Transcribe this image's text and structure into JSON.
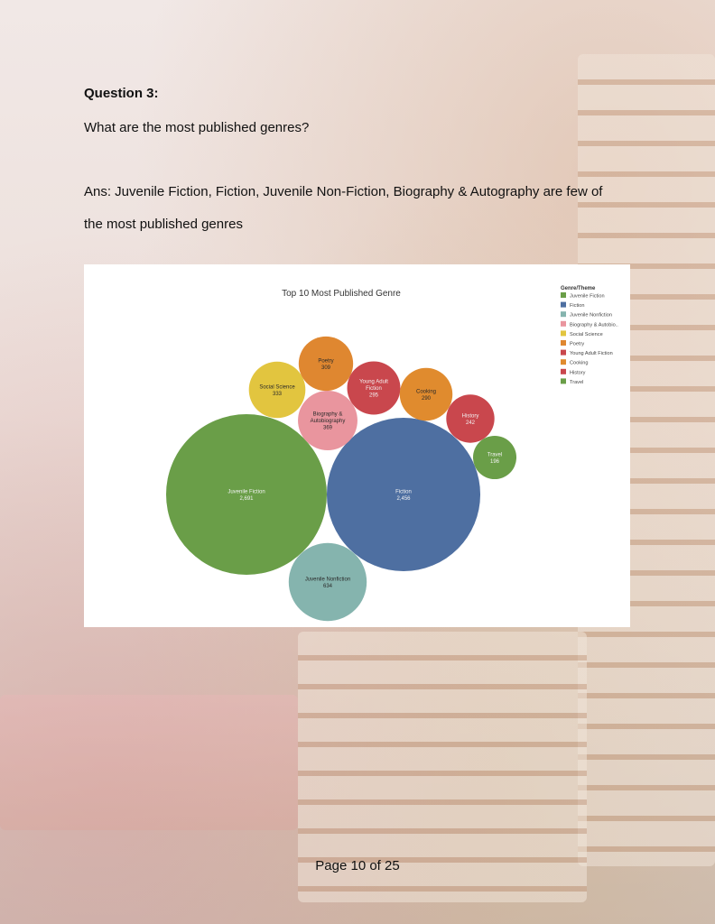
{
  "question": {
    "title": "Question 3:",
    "text": "What are the most published genres?"
  },
  "answer": {
    "line1": "Ans: Juvenile Fiction, Fiction, Juvenile Non-Fiction, Biography & Autography are few of",
    "line2": "the most published genres"
  },
  "chart_data": {
    "type": "packed-bubble",
    "title": "Top 10 Most Published Genre",
    "legend_title": "Genre/Theme",
    "legend_position": "top-right",
    "legend_entries": [
      "Juvenile Fiction",
      "Fiction",
      "Juvenile Nonfiction",
      "Biography & Autobio..",
      "Social Science",
      "Poetry",
      "Young Adult Fiction",
      "Cooking",
      "History",
      "Travel"
    ],
    "series": [
      {
        "name": "Juvenile Fiction",
        "label_lines": [
          "Juvenile Fiction"
        ],
        "value": 2691,
        "value_label": "2,691",
        "color": "#6a9e48"
      },
      {
        "name": "Fiction",
        "label_lines": [
          "Fiction"
        ],
        "value": 2456,
        "value_label": "2,456",
        "color": "#4e6fa1"
      },
      {
        "name": "Juvenile Nonfiction",
        "label_lines": [
          "Juvenile Nonfiction"
        ],
        "value": 634,
        "value_label": "634",
        "color": "#85b4ae"
      },
      {
        "name": "Biography & Autobiography",
        "label_lines": [
          "Biography &",
          "Autobiography"
        ],
        "value": 369,
        "value_label": "369",
        "color": "#e9959e"
      },
      {
        "name": "Social Science",
        "label_lines": [
          "Social Science"
        ],
        "value": 333,
        "value_label": "333",
        "color": "#e2c53f"
      },
      {
        "name": "Poetry",
        "label_lines": [
          "Poetry"
        ],
        "value": 309,
        "value_label": "309",
        "color": "#df8730"
      },
      {
        "name": "Young Adult Fiction",
        "label_lines": [
          "Young Adult",
          "Fiction"
        ],
        "value": 295,
        "value_label": "295",
        "color": "#c9474d"
      },
      {
        "name": "Cooking",
        "label_lines": [
          "Cooking"
        ],
        "value": 290,
        "value_label": "290",
        "color": "#e08b2e"
      },
      {
        "name": "History",
        "label_lines": [
          "History"
        ],
        "value": 242,
        "value_label": "242",
        "color": "#c9474d"
      },
      {
        "name": "Travel",
        "label_lines": [
          "Travel"
        ],
        "value": 196,
        "value_label": "196",
        "color": "#6a9e48"
      }
    ]
  },
  "footer": {
    "page": "Page 10 of 25"
  }
}
